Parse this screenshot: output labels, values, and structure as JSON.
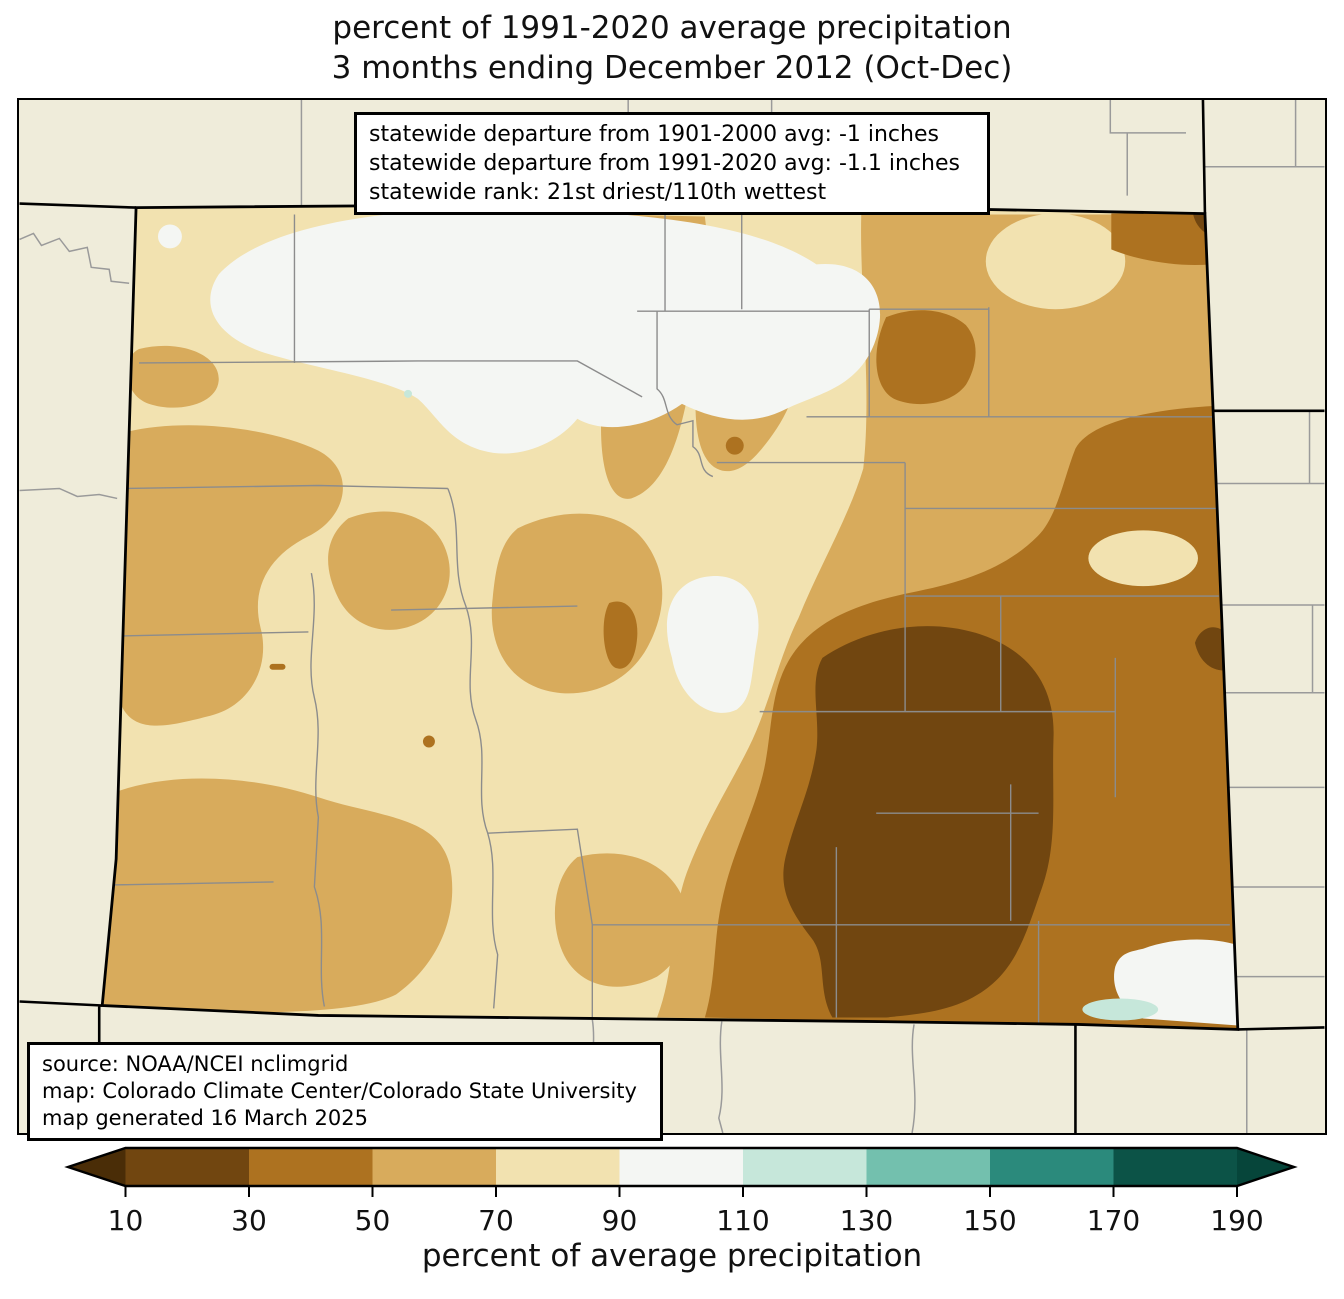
{
  "title": {
    "line1": "percent of 1991-2020 average precipitation",
    "line2": "3 months ending December 2012 (Oct-Dec)"
  },
  "stats_box": {
    "lines": [
      "statewide departure from 1901-2000 avg: -1 inches",
      "statewide departure from 1991-2020 avg: -1.1 inches",
      "statewide rank: 21st driest/110th wettest"
    ]
  },
  "source_box": {
    "lines": [
      "source: NOAA/NCEI nclimgrid",
      "map: Colorado Climate Center/Colorado State University",
      "map generated 16 March 2025"
    ]
  },
  "colorbar": {
    "label": "percent of average precipitation",
    "ticks": [
      10,
      30,
      50,
      70,
      90,
      110,
      130,
      150,
      170,
      190
    ],
    "segment_colors": [
      "#714610",
      "#ad7220",
      "#d8ab5c",
      "#f2e2b0",
      "#f4f6f3",
      "#c6e7da",
      "#73c0ae",
      "#2b8a7c",
      "#0c5347"
    ],
    "under_color": "#4a2d07",
    "over_color": "#06453a",
    "outline_color": "#000000"
  },
  "map": {
    "state": "Colorado",
    "background_color": "#efecda",
    "county_line_color": "#8c8c8c",
    "neighbor_county_line_color": "#9a9a9a",
    "state_border_color": "#000000",
    "regions": [
      {
        "area": "northwest",
        "percent_range": "90-110"
      },
      {
        "area": "west and southwest",
        "percent_range": "50-90"
      },
      {
        "area": "central mountains",
        "percent_range": "50-90"
      },
      {
        "area": "northeast",
        "percent_range": "50-90"
      },
      {
        "area": "east-central and southeast band",
        "percent_range": "30-50"
      },
      {
        "area": "southeast core",
        "percent_range": "10-30"
      },
      {
        "area": "far southeast corner",
        "percent_range": "90-130"
      }
    ]
  }
}
